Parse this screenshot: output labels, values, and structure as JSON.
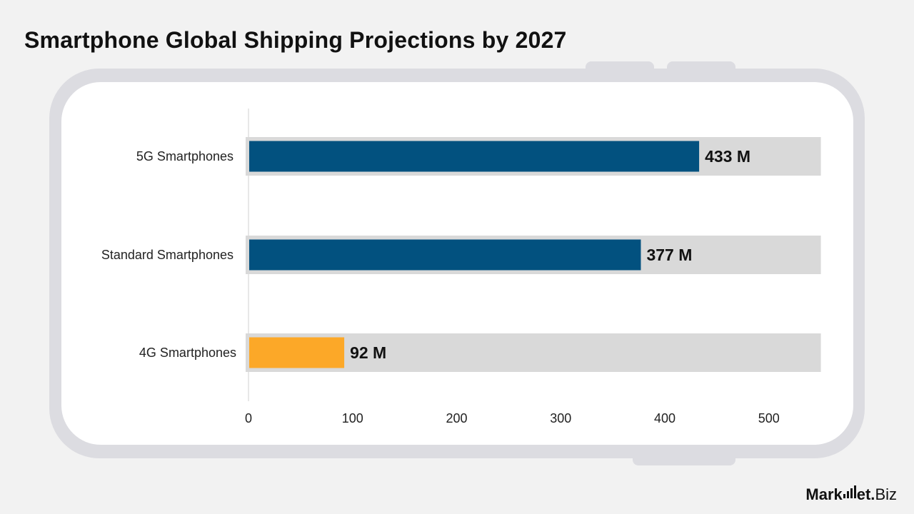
{
  "title": "Smartphone Global Shipping Projections by 2027",
  "chart_data": {
    "type": "bar",
    "orientation": "horizontal",
    "categories": [
      "5G Smartphones",
      "Standard Smartphones",
      "4G Smartphones"
    ],
    "values": [
      433,
      377,
      92
    ],
    "value_labels": [
      "433 M",
      "377 M",
      "92 M"
    ],
    "bar_colors": [
      "#02517f",
      "#02517f",
      "#fca828"
    ],
    "track_color": "#d9d9d9",
    "xlim": [
      0,
      550
    ],
    "xticks": [
      0,
      100,
      200,
      300,
      400,
      500
    ],
    "xtick_labels": [
      "0",
      "100",
      "200",
      "300",
      "400",
      "500"
    ],
    "grid": false,
    "xlabel": "",
    "ylabel": ""
  },
  "logo": {
    "text": "Market.Biz"
  }
}
